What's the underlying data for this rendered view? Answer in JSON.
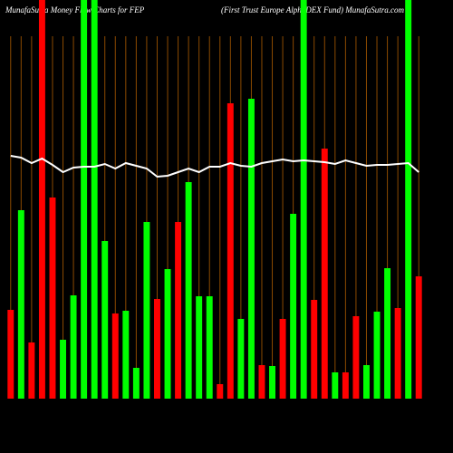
{
  "chart_data": {
    "type": "bar",
    "title": "MunafaSutra  Money Flow  Charts for FEP",
    "subtitle": "(First Trust Europe   AlphaDEX  Fund) MunafaSutra.com",
    "ylim": [
      0,
      440
    ],
    "values": [
      98,
      208,
      62,
      440,
      222,
      65,
      114,
      440,
      440,
      174,
      94,
      97,
      34,
      195,
      110,
      143,
      195,
      239,
      113,
      113,
      16,
      326,
      88,
      331,
      37,
      36,
      88,
      204,
      440,
      109,
      276,
      29,
      29,
      91,
      37,
      96,
      144,
      100,
      440,
      135
    ],
    "colors": [
      "#ff0000",
      "#00ff00",
      "#ff0000",
      "#ff0000",
      "#ff0000",
      "#00ff00",
      "#00ff00",
      "#00ff00",
      "#00ff00",
      "#00ff00",
      "#ff0000",
      "#00ff00",
      "#00ff00",
      "#00ff00",
      "#ff0000",
      "#00ff00",
      "#ff0000",
      "#00ff00",
      "#00ff00",
      "#00ff00",
      "#ff0000",
      "#ff0000",
      "#00ff00",
      "#00ff00",
      "#ff0000",
      "#00ff00",
      "#ff0000",
      "#00ff00",
      "#00ff00",
      "#ff0000",
      "#ff0000",
      "#00ff00",
      "#ff0000",
      "#ff0000",
      "#00ff00",
      "#00ff00",
      "#00ff00",
      "#ff0000",
      "#00ff00",
      "#ff0000"
    ],
    "line": {
      "color": "#ffffff",
      "values": [
        268,
        266,
        260,
        265,
        258,
        250,
        255,
        256,
        256,
        259,
        254,
        260,
        257,
        254,
        245,
        246,
        250,
        254,
        250,
        256,
        256,
        260,
        257,
        256,
        260,
        262,
        264,
        262,
        263,
        262,
        261,
        259,
        263,
        260,
        257,
        258,
        258,
        259,
        260,
        250
      ]
    }
  }
}
